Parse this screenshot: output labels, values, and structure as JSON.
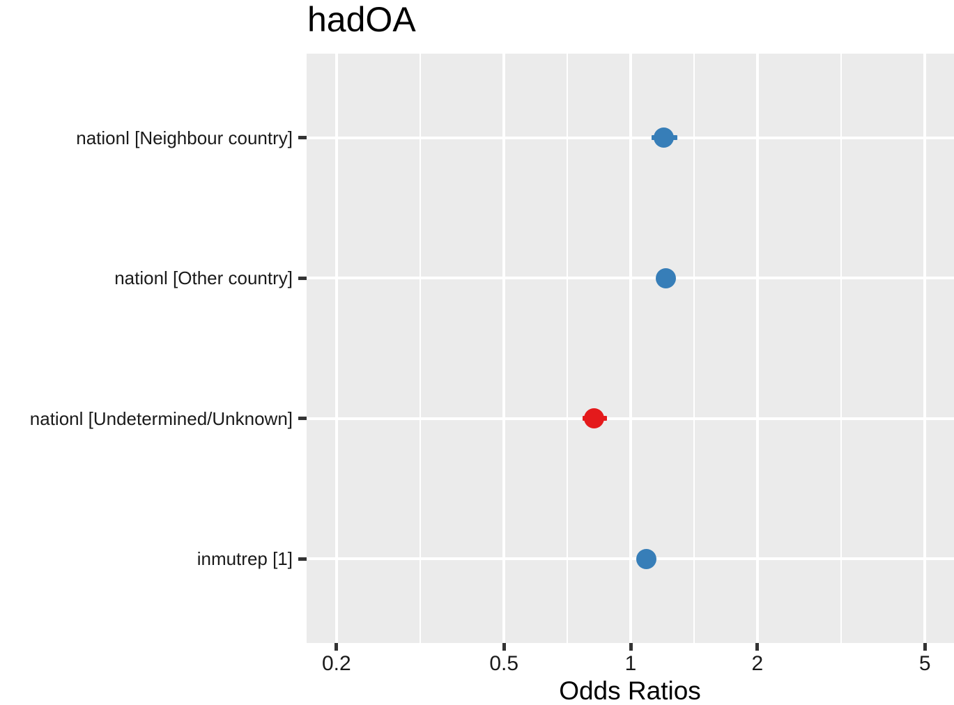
{
  "title": "hadOA",
  "chart_data": {
    "type": "scatter",
    "subtype": "forest-plot-odds-ratios",
    "title": "hadOA",
    "xlabel": "Odds Ratios",
    "x_scale": "log10",
    "x_ticks": [
      0.2,
      0.5,
      1,
      2,
      5
    ],
    "x_tick_labels": [
      "0.2",
      "0.5",
      "1",
      "2",
      "5"
    ],
    "x_range_approx": [
      0.17,
      5.9
    ],
    "grid": "on",
    "legend": "none",
    "panel_background": "#EBEBEB",
    "gridline_color": "#FFFFFF",
    "categories": [
      "nationl [Neighbour country]",
      "nationl [Other country]",
      "nationl [Undetermined/Unknown]",
      "inmutrep [1]"
    ],
    "points": [
      {
        "label": "nationl [Neighbour country]",
        "or": 1.2,
        "ci_low": 1.12,
        "ci_high": 1.29,
        "direction": "positive",
        "color": "#377EB8"
      },
      {
        "label": "nationl [Other country]",
        "or": 1.21,
        "ci_low": null,
        "ci_high": null,
        "direction": "positive",
        "color": "#377EB8"
      },
      {
        "label": "nationl [Undetermined/Unknown]",
        "or": 0.82,
        "ci_low": 0.77,
        "ci_high": 0.88,
        "direction": "negative",
        "color": "#E41A1C"
      },
      {
        "label": "inmutrep [1]",
        "or": 1.09,
        "ci_low": null,
        "ci_high": null,
        "direction": "positive",
        "color": "#377EB8"
      }
    ],
    "colors": {
      "positive": "#377EB8",
      "negative": "#E41A1C"
    }
  }
}
